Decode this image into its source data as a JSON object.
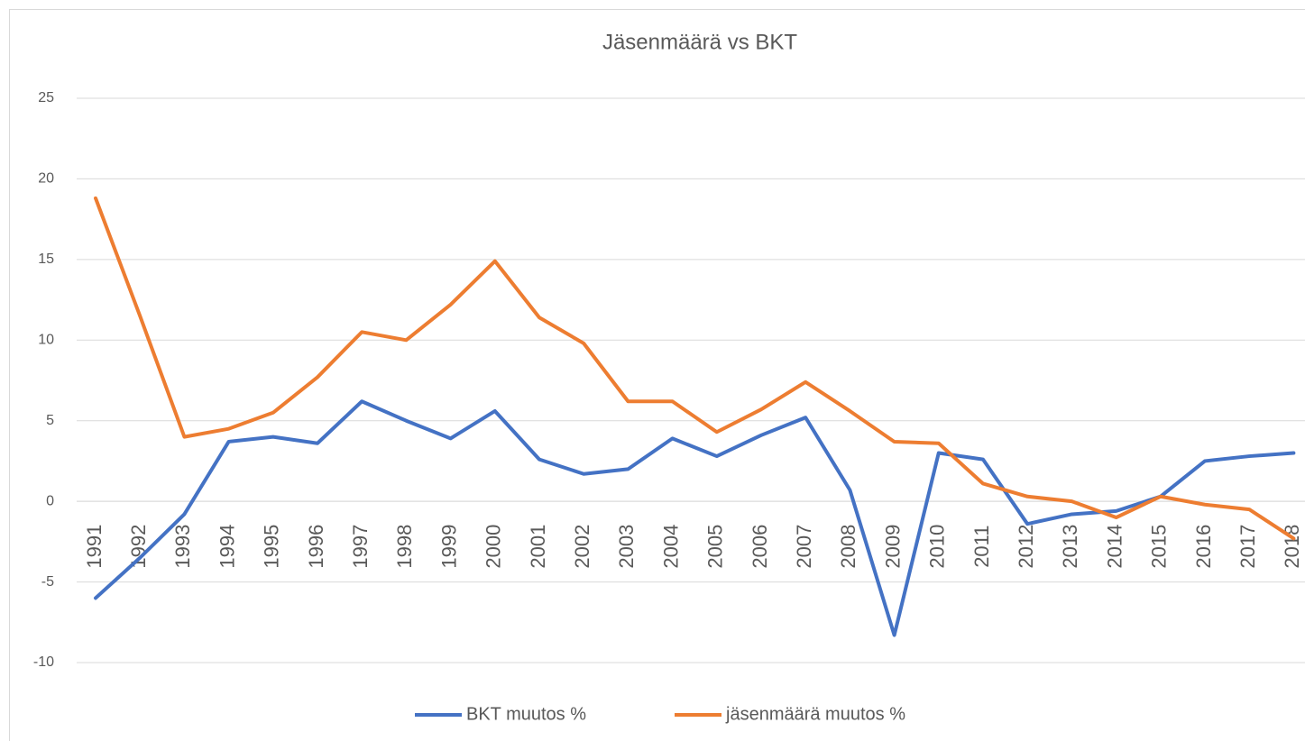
{
  "chart_data": {
    "type": "line",
    "title": "Jäsenmäärä vs BKT",
    "categories": [
      "1991",
      "1992",
      "1993",
      "1994",
      "1995",
      "1996",
      "1997",
      "1998",
      "1999",
      "2000",
      "2001",
      "2002",
      "2003",
      "2004",
      "2005",
      "2006",
      "2007",
      "2008",
      "2009",
      "2010",
      "2011",
      "2012",
      "2013",
      "2014",
      "2015",
      "2016",
      "2017",
      "2018"
    ],
    "series": [
      {
        "name": "BKT muutos %",
        "color": "#4472c4",
        "values": [
          -6.0,
          -3.5,
          -0.8,
          3.7,
          4.0,
          3.6,
          6.2,
          5.0,
          3.9,
          5.6,
          2.6,
          1.7,
          2.0,
          3.9,
          2.8,
          4.1,
          5.2,
          0.7,
          -8.3,
          3.0,
          2.6,
          -1.4,
          -0.8,
          -0.6,
          0.3,
          2.5,
          2.8,
          3.0
        ]
      },
      {
        "name": "jäsenmäärä muutos %",
        "color": "#ed7d31",
        "values": [
          18.8,
          11.5,
          4.0,
          4.5,
          5.5,
          7.7,
          10.5,
          10.0,
          12.2,
          14.9,
          11.4,
          9.8,
          6.2,
          6.2,
          4.3,
          5.7,
          7.4,
          5.6,
          3.7,
          3.6,
          1.1,
          0.3,
          0.0,
          -1.0,
          0.3,
          -0.2,
          -0.5,
          -2.3
        ]
      }
    ],
    "ylim": [
      -10,
      25
    ],
    "yticks": [
      -10,
      -5,
      0,
      5,
      10,
      15,
      20,
      25
    ],
    "grid": true,
    "legend": "bottom"
  }
}
